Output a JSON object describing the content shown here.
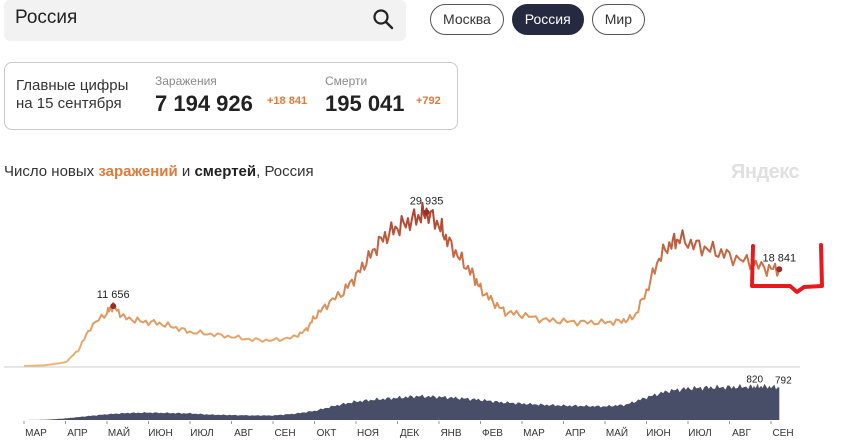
{
  "search": {
    "value": "Россия"
  },
  "tabs": [
    {
      "label": "Москва",
      "active": false
    },
    {
      "label": "Россия",
      "active": true
    },
    {
      "label": "Мир",
      "active": false
    }
  ],
  "summary": {
    "label_line1": "Главные цифры",
    "label_line2": "на 15 сентября",
    "infections": {
      "label": "Заражения",
      "value": "7 194 926",
      "delta": "+18 841"
    },
    "deaths": {
      "label": "Смерти",
      "value": "195 041",
      "delta": "+792"
    }
  },
  "chart_header": {
    "prefix": "Число новых ",
    "infections_word": "заражений",
    "mid": " и ",
    "deaths_word": "смертей",
    "suffix": ", Россия"
  },
  "brand": "Яндекс",
  "colors": {
    "accent": "#e07a3a",
    "tab_active": "#252a40",
    "infections_low": "#e8b87a",
    "infections_high": "#a93a2c",
    "deaths_area": "#3f4560"
  },
  "chart_data": [
    {
      "type": "line",
      "series_name": "заражения",
      "x_months": [
        "МАР",
        "АПР",
        "МАЙ",
        "ИЮН",
        "ИЮЛ",
        "АВГ",
        "СЕН",
        "ОКТ",
        "НОЯ",
        "ДЕК",
        "ЯНВ",
        "ФЕВ",
        "МАР",
        "АПР",
        "МАЙ",
        "ИЮН",
        "ИЮЛ",
        "АВГ",
        "СЕН"
      ],
      "points": [
        [
          0,
          0
        ],
        [
          0.5,
          150
        ],
        [
          1,
          700
        ],
        [
          1.3,
          3000
        ],
        [
          1.6,
          7500
        ],
        [
          2.0,
          10500
        ],
        [
          2.15,
          11656
        ],
        [
          2.4,
          9500
        ],
        [
          2.8,
          8700
        ],
        [
          3.2,
          8400
        ],
        [
          3.6,
          7600
        ],
        [
          4.0,
          6600
        ],
        [
          4.5,
          6200
        ],
        [
          5.0,
          5700
        ],
        [
          5.5,
          5100
        ],
        [
          6.0,
          5000
        ],
        [
          6.5,
          5600
        ],
        [
          6.8,
          7000
        ],
        [
          7.0,
          9500
        ],
        [
          7.3,
          12000
        ],
        [
          7.7,
          14500
        ],
        [
          8.0,
          17500
        ],
        [
          8.3,
          21000
        ],
        [
          8.6,
          24500
        ],
        [
          8.9,
          26500
        ],
        [
          9.2,
          27800
        ],
        [
          9.5,
          29000
        ],
        [
          9.7,
          29935
        ],
        [
          10.0,
          27500
        ],
        [
          10.2,
          24500
        ],
        [
          10.5,
          21000
        ],
        [
          10.8,
          18000
        ],
        [
          11.0,
          15000
        ],
        [
          11.3,
          12500
        ],
        [
          11.6,
          10500
        ],
        [
          12.0,
          10000
        ],
        [
          12.5,
          9000
        ],
        [
          13.0,
          8700
        ],
        [
          13.5,
          8500
        ],
        [
          14.0,
          8500
        ],
        [
          14.4,
          8700
        ],
        [
          14.7,
          9500
        ],
        [
          15.0,
          14500
        ],
        [
          15.3,
          21000
        ],
        [
          15.6,
          24000
        ],
        [
          15.8,
          24700
        ],
        [
          16.2,
          23500
        ],
        [
          16.6,
          22500
        ],
        [
          17.0,
          21500
        ],
        [
          17.5,
          20000
        ],
        [
          17.9,
          19000
        ],
        [
          18.2,
          18841
        ]
      ],
      "annotations": [
        {
          "label": "11 656",
          "x": 2.15,
          "y": 11656
        },
        {
          "label": "29 935",
          "x": 9.7,
          "y": 29935
        },
        {
          "label": "18 841",
          "x": 18.2,
          "y": 18841
        }
      ],
      "ylim": [
        0,
        30000
      ]
    },
    {
      "type": "area",
      "series_name": "смерти",
      "points": [
        [
          0,
          0
        ],
        [
          0.5,
          5
        ],
        [
          1,
          40
        ],
        [
          1.5,
          90
        ],
        [
          2,
          140
        ],
        [
          2.5,
          170
        ],
        [
          3,
          180
        ],
        [
          3.5,
          170
        ],
        [
          4,
          160
        ],
        [
          4.5,
          130
        ],
        [
          5,
          120
        ],
        [
          5.5,
          110
        ],
        [
          6,
          110
        ],
        [
          6.5,
          150
        ],
        [
          7,
          220
        ],
        [
          7.5,
          350
        ],
        [
          8,
          450
        ],
        [
          8.5,
          500
        ],
        [
          9,
          540
        ],
        [
          9.5,
          580
        ],
        [
          10,
          560
        ],
        [
          10.5,
          530
        ],
        [
          11,
          490
        ],
        [
          11.5,
          430
        ],
        [
          12,
          400
        ],
        [
          12.5,
          370
        ],
        [
          13,
          350
        ],
        [
          13.5,
          340
        ],
        [
          14,
          330
        ],
        [
          14.5,
          370
        ],
        [
          15,
          550
        ],
        [
          15.5,
          700
        ],
        [
          16,
          770
        ],
        [
          16.5,
          790
        ],
        [
          17,
          800
        ],
        [
          17.5,
          810
        ],
        [
          17.8,
          820
        ],
        [
          18.2,
          792
        ]
      ],
      "annotations": [
        {
          "label": "820",
          "x": 17.8,
          "y": 820
        },
        {
          "label": "792",
          "x": 18.2,
          "y": 792
        }
      ],
      "ylim": [
        0,
        900
      ]
    }
  ]
}
